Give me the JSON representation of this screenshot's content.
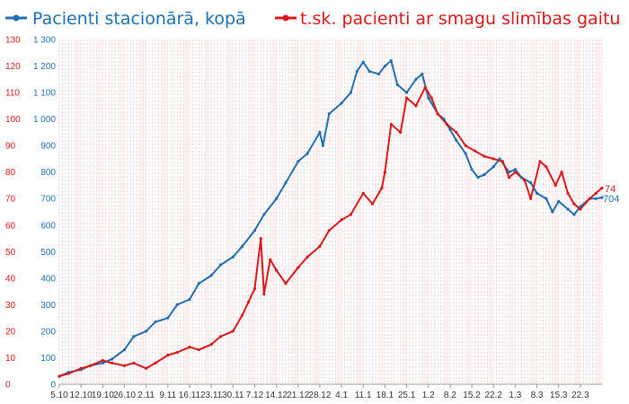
{
  "chart_data": {
    "type": "line",
    "title": "",
    "legend_position": "top",
    "x_tick_labels": [
      "5.10",
      "12.10",
      "19.10",
      "26.10",
      "2.11",
      "9.11",
      "16.11",
      "23.11",
      "30.11",
      "7.12",
      "14.12",
      "21.12",
      "28.12",
      "4.1",
      "11.1",
      "18.1",
      "25.1",
      "1.2",
      "8.2",
      "15.2",
      "22.2",
      "1.3",
      "8.3",
      "15.3",
      "22.3"
    ],
    "x_tick_step_days": 7,
    "x_range_days": [
      0,
      175
    ],
    "left_axis": {
      "ticks": [
        "0",
        "100",
        "200",
        "300",
        "400",
        "500",
        "600",
        "700",
        "800",
        "900",
        "1 000",
        "1 100",
        "1 200",
        "1 300"
      ],
      "range": [
        0,
        1300
      ],
      "color": "#1f6fb2"
    },
    "right_axis": {
      "ticks": [
        "0",
        "10",
        "20",
        "30",
        "40",
        "50",
        "60",
        "70",
        "80",
        "90",
        "100",
        "110",
        "120",
        "130"
      ],
      "range": [
        0,
        130
      ],
      "color": "#d7191c"
    },
    "grid": "vertical dashed lines every day, red",
    "series": [
      {
        "name": "Pacienti stacionārā, kopā",
        "axis": "left",
        "color": "#1f6fb2",
        "end_label": "704",
        "x_days": [
          0,
          3,
          7,
          10,
          14,
          17,
          21,
          24,
          28,
          31,
          35,
          38,
          42,
          45,
          49,
          52,
          56,
          59,
          63,
          66,
          70,
          73,
          77,
          80,
          84,
          85,
          87,
          91,
          94,
          96,
          98,
          100,
          103,
          105,
          107,
          109,
          112,
          115,
          117,
          119,
          122,
          124,
          126,
          128,
          131,
          133,
          135,
          137,
          140,
          142,
          145,
          147,
          149,
          152,
          154,
          157,
          159,
          161,
          164,
          166,
          168,
          171,
          173,
          175
        ],
        "values": [
          30,
          45,
          55,
          70,
          80,
          95,
          130,
          180,
          200,
          235,
          250,
          300,
          320,
          380,
          410,
          450,
          480,
          520,
          580,
          640,
          700,
          760,
          840,
          870,
          950,
          900,
          1020,
          1060,
          1100,
          1180,
          1215,
          1180,
          1170,
          1200,
          1220,
          1130,
          1100,
          1150,
          1170,
          1080,
          1020,
          1000,
          960,
          920,
          870,
          810,
          780,
          790,
          820,
          850,
          800,
          810,
          780,
          760,
          720,
          700,
          650,
          690,
          660,
          640,
          670,
          700,
          700,
          704
        ]
      },
      {
        "name": "t.sk. pacienti ar smagu slimības gaitu",
        "axis": "right",
        "color": "#d7191c",
        "end_label": "74",
        "x_days": [
          0,
          3,
          7,
          10,
          14,
          17,
          21,
          24,
          28,
          31,
          35,
          38,
          42,
          45,
          49,
          52,
          56,
          59,
          61,
          63,
          65,
          66,
          68,
          70,
          73,
          77,
          80,
          84,
          87,
          91,
          94,
          98,
          101,
          104,
          105,
          107,
          110,
          112,
          115,
          118,
          120,
          122,
          125,
          128,
          131,
          134,
          137,
          140,
          143,
          145,
          147,
          150,
          152,
          155,
          157,
          160,
          162,
          164,
          166,
          168,
          171,
          173,
          175
        ],
        "values": [
          3,
          4,
          6,
          7,
          9,
          8,
          7,
          8,
          6,
          8,
          11,
          12,
          14,
          13,
          15,
          18,
          20,
          26,
          31,
          36,
          55,
          34,
          47,
          43,
          38,
          44,
          48,
          52,
          58,
          62,
          64,
          72,
          68,
          74,
          80,
          98,
          95,
          108,
          105,
          112,
          108,
          102,
          98,
          95,
          90,
          88,
          86,
          85,
          84,
          78,
          80,
          77,
          70,
          84,
          82,
          75,
          80,
          72,
          68,
          66,
          70,
          72,
          74
        ]
      }
    ]
  }
}
